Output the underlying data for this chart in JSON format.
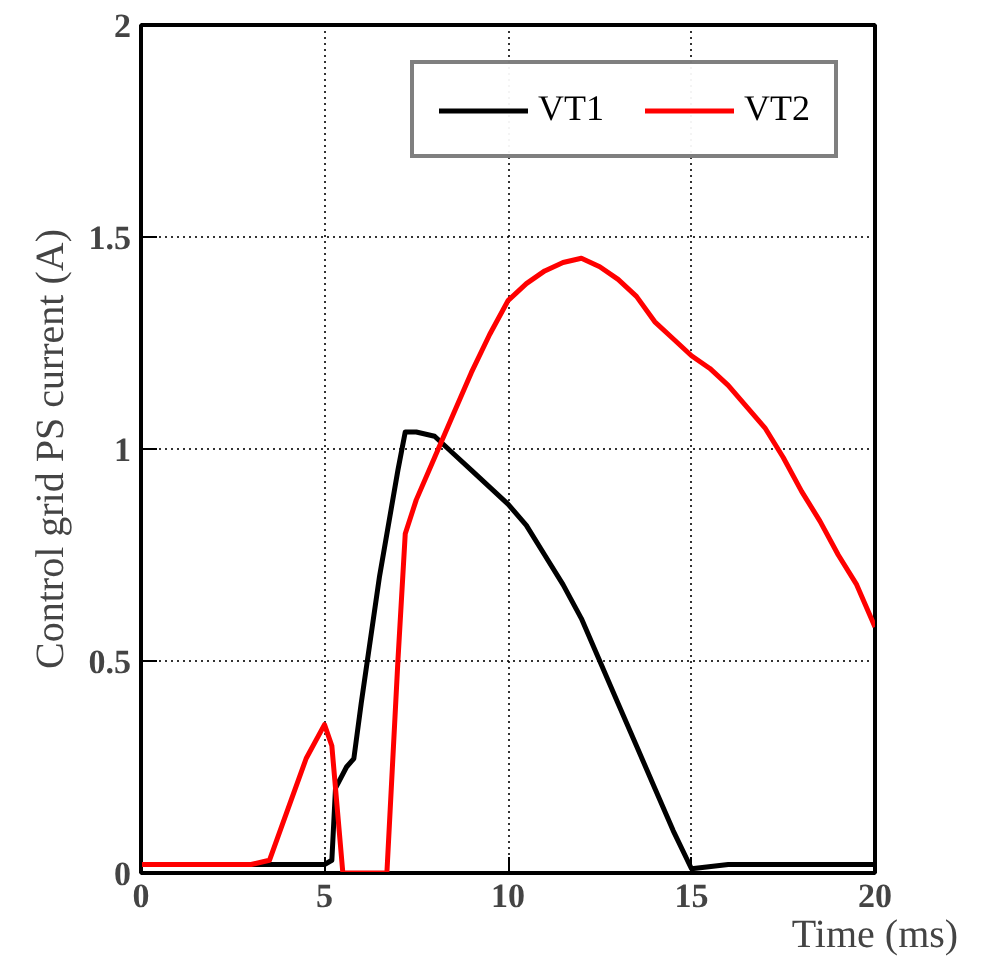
{
  "chart_data": {
    "type": "line",
    "xlabel": "Time (ms)",
    "ylabel": "Control grid PS current (A)",
    "xlim": [
      0,
      20
    ],
    "ylim": [
      0,
      2
    ],
    "xticks": [
      0,
      5,
      10,
      15,
      20
    ],
    "yticks": [
      0,
      0.5,
      1,
      1.5,
      2
    ],
    "grid": true,
    "legend": "top right",
    "line_style": "solid",
    "marker": "none",
    "series": [
      {
        "name": "VT1",
        "color": "#000000",
        "x": [
          0,
          1,
          2,
          3,
          4,
          5,
          5.2,
          5.3,
          5.6,
          5.8,
          6,
          6.5,
          7,
          7.2,
          7.5,
          8,
          8.5,
          9,
          9.5,
          10,
          10.5,
          11,
          11.5,
          12,
          12.5,
          13,
          13.5,
          14,
          14.5,
          15,
          16,
          17,
          18,
          19,
          20
        ],
        "values": [
          0.02,
          0.02,
          0.02,
          0.02,
          0.02,
          0.02,
          0.03,
          0.2,
          0.25,
          0.27,
          0.4,
          0.7,
          0.95,
          1.04,
          1.04,
          1.03,
          0.99,
          0.95,
          0.91,
          0.87,
          0.82,
          0.75,
          0.68,
          0.6,
          0.5,
          0.4,
          0.3,
          0.2,
          0.1,
          0.01,
          0.02,
          0.02,
          0.02,
          0.02,
          0.02
        ]
      },
      {
        "name": "VT2",
        "color": "#ff0000",
        "x": [
          0,
          1,
          2,
          3,
          3.5,
          4,
          4.5,
          5,
          5.2,
          5.5,
          6,
          6.7,
          7,
          7.2,
          7.5,
          8,
          8.5,
          9,
          9.5,
          10,
          10.5,
          11,
          11.5,
          12,
          12.5,
          13,
          13.5,
          14,
          14.5,
          15,
          15.5,
          16,
          16.5,
          17,
          17.5,
          18,
          18.5,
          19,
          19.5,
          20
        ],
        "values": [
          0.02,
          0.02,
          0.02,
          0.02,
          0.03,
          0.15,
          0.27,
          0.35,
          0.3,
          0.0,
          0.0,
          0.0,
          0.5,
          0.8,
          0.88,
          0.98,
          1.08,
          1.18,
          1.27,
          1.35,
          1.39,
          1.42,
          1.44,
          1.45,
          1.43,
          1.4,
          1.36,
          1.3,
          1.26,
          1.22,
          1.19,
          1.15,
          1.1,
          1.05,
          0.98,
          0.9,
          0.83,
          0.75,
          0.68,
          0.58
        ]
      }
    ]
  }
}
